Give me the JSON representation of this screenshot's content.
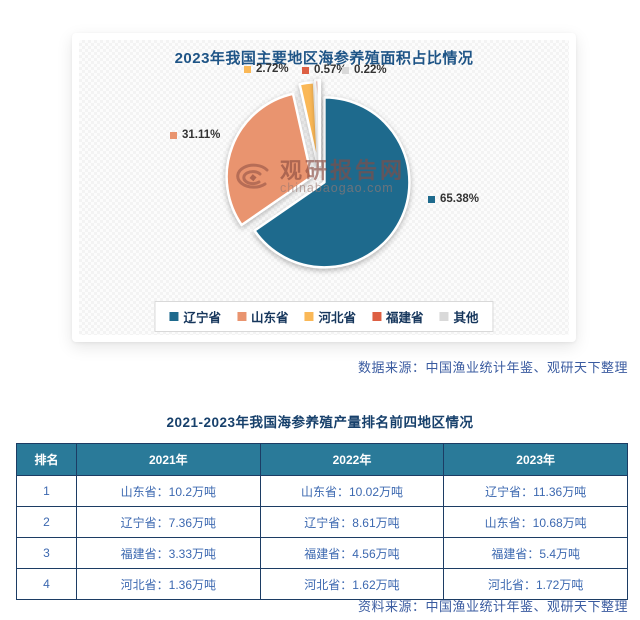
{
  "pie_section": {
    "title": "2023年我国主要地区海参养殖面积占比情况",
    "watermark": {
      "name": "观研报告网",
      "domain": "chinabaogao.com"
    },
    "source": "数据来源：中国渔业统计年鉴、观研天下整理"
  },
  "chart_data": {
    "type": "pie",
    "title": "2023年我国主要地区海参养殖面积占比情况",
    "labels": [
      "辽宁省",
      "山东省",
      "河北省",
      "福建省",
      "其他"
    ],
    "values": [
      65.38,
      31.11,
      2.72,
      0.57,
      0.22
    ],
    "colors": [
      "#1e6a8d",
      "#e9946f",
      "#fab857",
      "#dd5f43",
      "#d9d9d9"
    ],
    "unit": "%",
    "start_angle_deg": 0,
    "direction": "clockwise",
    "legend_position": "bottom",
    "label_format": "percent"
  },
  "table_section": {
    "title": "2021-2023年我国海参养殖产量排名前四地区情况",
    "columns": [
      "排名",
      "2021年",
      "2022年",
      "2023年"
    ],
    "rows": [
      [
        "1",
        "山东省：10.2万吨",
        "山东省：10.02万吨",
        "辽宁省：11.36万吨"
      ],
      [
        "2",
        "辽宁省：7.36万吨",
        "辽宁省：8.61万吨",
        "山东省：10.68万吨"
      ],
      [
        "3",
        "福建省：3.33万吨",
        "福建省：4.56万吨",
        "福建省：5.4万吨"
      ],
      [
        "4",
        "河北省：1.36万吨",
        "河北省：1.62万吨",
        "河北省：1.72万吨"
      ]
    ],
    "source": "资料来源：中国渔业统计年鉴、观研天下整理"
  }
}
